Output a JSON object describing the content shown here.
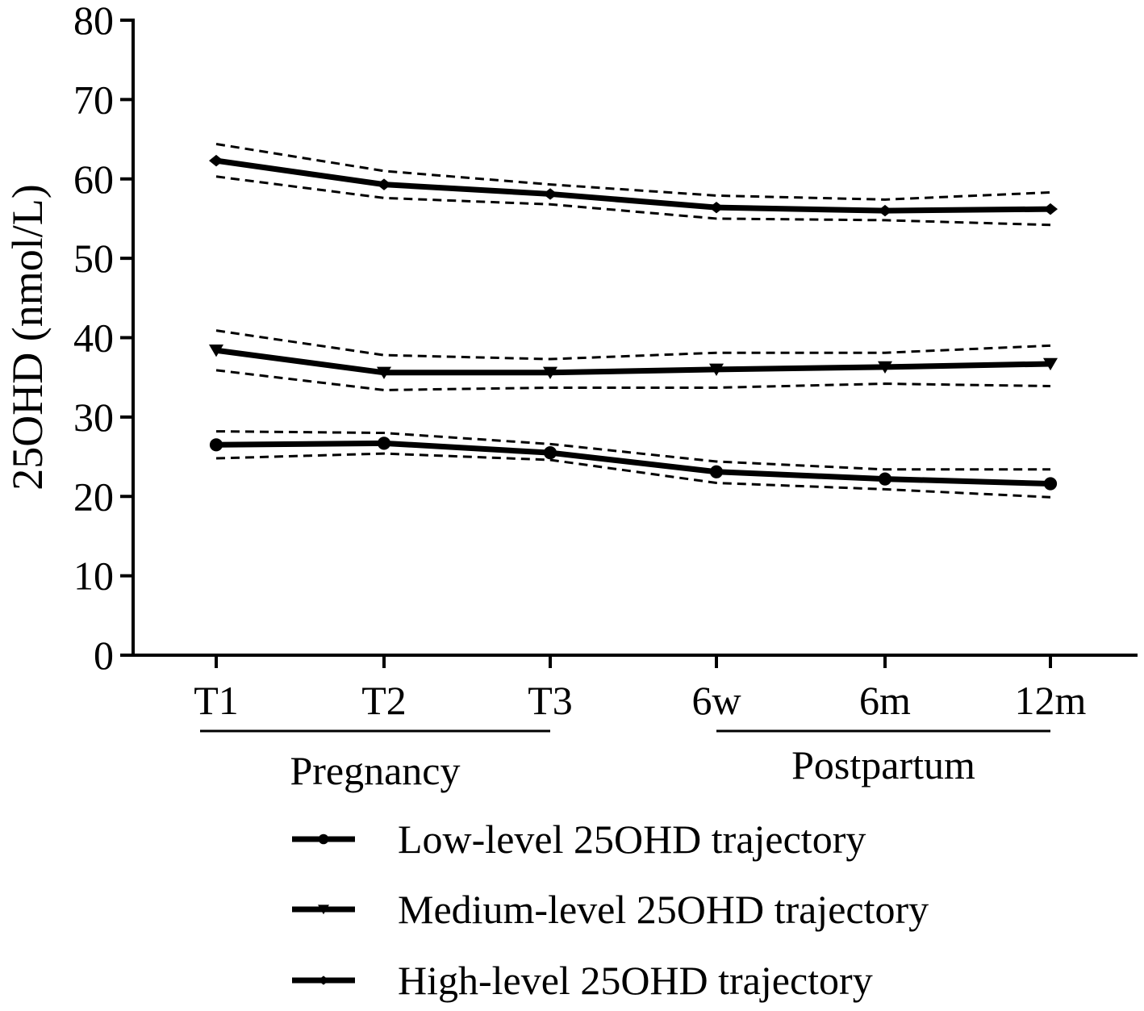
{
  "chart_data": {
    "type": "line",
    "title": "",
    "xlabel": "",
    "ylabel": "25OHD (nmol/L)",
    "ylim": [
      0,
      80
    ],
    "yticks": [
      0,
      10,
      20,
      30,
      40,
      50,
      60,
      70,
      80
    ],
    "categories": [
      "T1",
      "T2",
      "T3",
      "6w",
      "6m",
      "12m"
    ],
    "groups": [
      {
        "label": "Pregnancy",
        "from": "T1",
        "to": "T3"
      },
      {
        "label": "Postpartum",
        "from": "6w",
        "to": "12m"
      }
    ],
    "grid": false,
    "legend_position": "bottom",
    "series": [
      {
        "name": "Low-level 25OHD trajectory",
        "marker": "circle",
        "values": [
          26.5,
          26.7,
          25.5,
          23.1,
          22.2,
          21.6
        ],
        "upper": [
          28.2,
          28.0,
          26.6,
          24.4,
          23.4,
          23.4
        ],
        "lower": [
          24.8,
          25.4,
          24.6,
          21.7,
          20.9,
          19.9
        ]
      },
      {
        "name": "Medium-level 25OHD trajectory",
        "marker": "triangle-down",
        "values": [
          38.4,
          35.6,
          35.6,
          36.0,
          36.3,
          36.7
        ],
        "upper": [
          40.9,
          37.8,
          37.3,
          38.1,
          38.1,
          39.0
        ],
        "lower": [
          35.9,
          33.4,
          33.7,
          33.7,
          34.2,
          33.9
        ]
      },
      {
        "name": "High-level 25OHD trajectory",
        "marker": "diamond",
        "values": [
          62.3,
          59.3,
          58.1,
          56.4,
          56.0,
          56.2
        ],
        "upper": [
          64.4,
          61.0,
          59.3,
          57.9,
          57.4,
          58.3
        ],
        "lower": [
          60.3,
          57.6,
          56.8,
          55.0,
          54.8,
          54.2
        ]
      }
    ]
  }
}
